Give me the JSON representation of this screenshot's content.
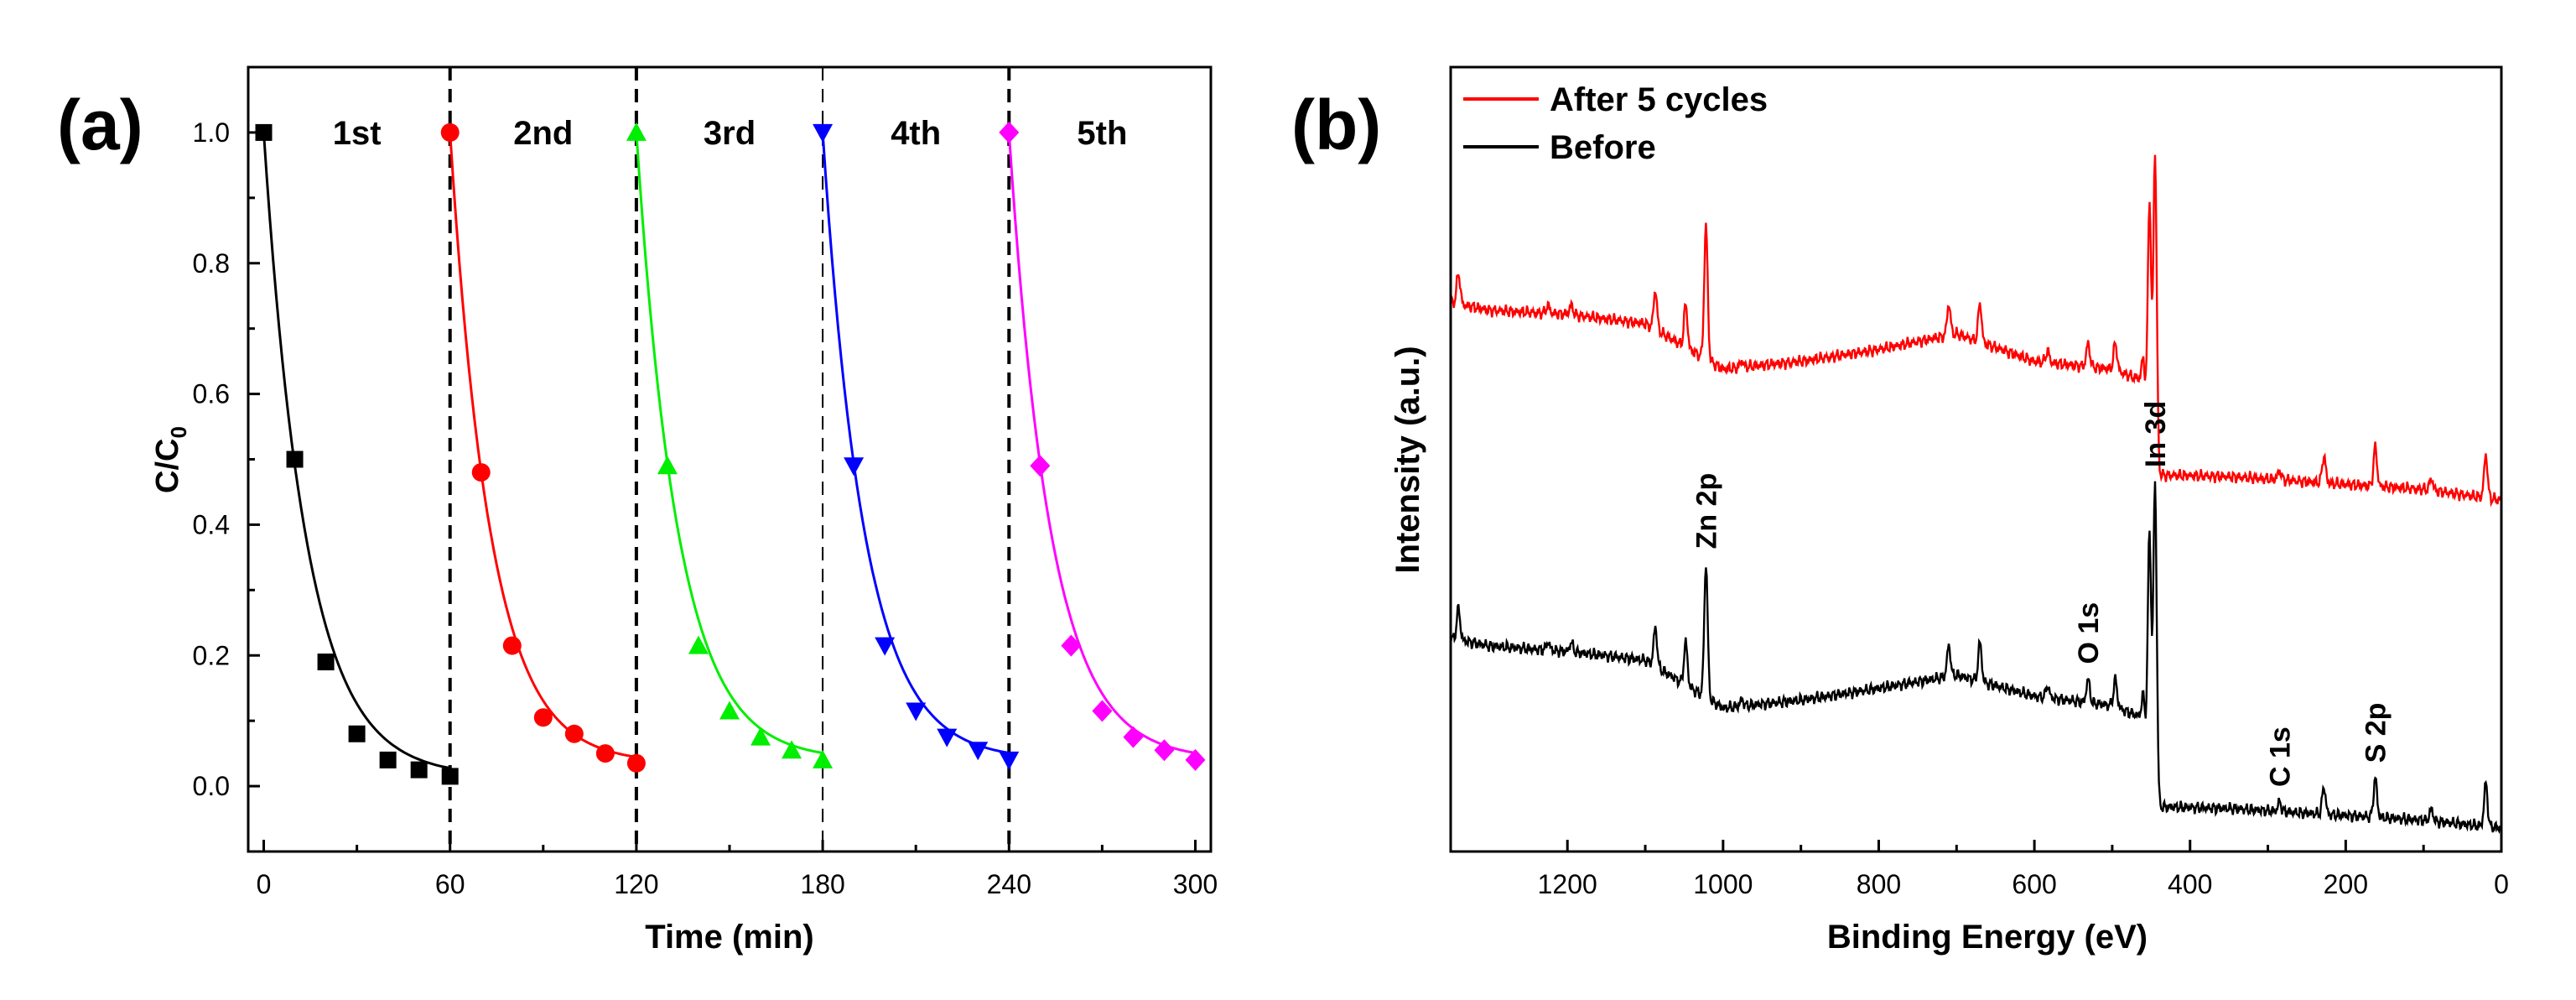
{
  "panel_a_label": "(a)",
  "panel_b_label": "(b)",
  "chart_data": [
    {
      "type": "line",
      "panel": "(a)",
      "xlabel": "Time (min)",
      "ylabel_main": "C/C",
      "ylabel_sub": "0",
      "xlim": [
        -5,
        305
      ],
      "ylim": [
        -0.1,
        1.1
      ],
      "xticks": [
        0,
        60,
        120,
        180,
        240,
        300
      ],
      "yticks": [
        0.0,
        0.2,
        0.4,
        0.6,
        0.8,
        1.0
      ],
      "ytick_labels": [
        "0.0",
        "0.2",
        "0.4",
        "0.6",
        "0.8",
        "1.0"
      ],
      "cycle_dividers": [
        60,
        120,
        180,
        240
      ],
      "cycle_labels": [
        {
          "text": "1st",
          "x": 30
        },
        {
          "text": "2nd",
          "x": 90
        },
        {
          "text": "3rd",
          "x": 150
        },
        {
          "text": "4th",
          "x": 210
        },
        {
          "text": "5th",
          "x": 270
        }
      ],
      "series": [
        {
          "name": "1st",
          "color": "#000000",
          "marker": "square",
          "x": [
            0,
            10,
            20,
            30,
            40,
            50,
            60
          ],
          "y": [
            1.0,
            0.5,
            0.19,
            0.08,
            0.04,
            0.025,
            0.015
          ]
        },
        {
          "name": "2nd",
          "color": "#ff0000",
          "marker": "circle",
          "x": [
            60,
            70,
            80,
            90,
            100,
            110,
            120
          ],
          "y": [
            1.0,
            0.48,
            0.215,
            0.105,
            0.08,
            0.05,
            0.035
          ]
        },
        {
          "name": "3rd",
          "color": "#00ee00",
          "marker": "triangle-up",
          "x": [
            120,
            130,
            140,
            150,
            160,
            170,
            180
          ],
          "y": [
            1.0,
            0.49,
            0.215,
            0.115,
            0.075,
            0.055,
            0.04
          ]
        },
        {
          "name": "4th",
          "color": "#0000ff",
          "marker": "triangle-down",
          "x": [
            180,
            190,
            200,
            210,
            220,
            230,
            240
          ],
          "y": [
            1.0,
            0.49,
            0.215,
            0.115,
            0.075,
            0.055,
            0.04
          ]
        },
        {
          "name": "5th",
          "color": "#ff00ff",
          "marker": "diamond",
          "x": [
            240,
            250,
            260,
            270,
            280,
            290,
            300
          ],
          "y": [
            1.0,
            0.49,
            0.215,
            0.115,
            0.075,
            0.055,
            0.04
          ]
        }
      ]
    },
    {
      "type": "line",
      "panel": "(b)",
      "xlabel": "Binding Energy (eV)",
      "ylabel": "Intensity (a.u.)",
      "xlim": [
        1350,
        0
      ],
      "ylim": [
        0,
        1
      ],
      "xticks": [
        1200,
        1000,
        800,
        600,
        400,
        200,
        0
      ],
      "legend": {
        "position": "top-left",
        "entries": [
          {
            "label": "After 5 cycles",
            "color": "#ff0000"
          },
          {
            "label": "Before",
            "color": "#000000"
          }
        ]
      },
      "annotations": [
        {
          "text": "Zn 2p",
          "x": 1022
        },
        {
          "text": "O 1s",
          "x": 531
        },
        {
          "text": "In 3d",
          "x": 445
        },
        {
          "text": "C 1s",
          "x": 285
        },
        {
          "text": "S 2p",
          "x": 162
        }
      ],
      "series": [
        {
          "name": "After 5 cycles",
          "color": "#ff0000",
          "base": [
            [
              1350,
              0.7
            ],
            [
              1300,
              0.69
            ],
            [
              1200,
              0.685
            ],
            [
              1100,
              0.673
            ],
            [
              1000,
              0.615
            ],
            [
              900,
              0.625
            ],
            [
              800,
              0.64
            ],
            [
              700,
              0.66
            ],
            [
              600,
              0.625
            ],
            [
              500,
              0.615
            ],
            [
              460,
              0.6
            ],
            [
              450,
              0.5
            ],
            [
              440,
              0.48
            ],
            [
              350,
              0.478
            ],
            [
              300,
              0.475
            ],
            [
              200,
              0.468
            ],
            [
              100,
              0.462
            ],
            [
              0,
              0.448
            ]
          ],
          "peaks": [
            [
              1340,
              0.04
            ],
            [
              1225,
              0.01
            ],
            [
              1195,
              0.012
            ],
            [
              1087,
              0.05
            ],
            [
              1048,
              0.055
            ],
            [
              1022,
              0.17
            ],
            [
              976,
              0.008
            ],
            [
              710,
              0.04
            ],
            [
              670,
              0.05
            ],
            [
              583,
              0.015
            ],
            [
              531,
              0.03
            ],
            [
              496,
              0.035
            ],
            [
              460,
              0.03
            ],
            [
              452,
              0.31
            ],
            [
              445,
              0.4
            ],
            [
              285,
              0.012
            ],
            [
              228,
              0.035
            ],
            [
              162,
              0.05
            ],
            [
              90,
              0.015
            ],
            [
              20,
              0.055
            ]
          ]
        },
        {
          "name": "Before",
          "color": "#000000",
          "base": [
            [
              1350,
              0.272
            ],
            [
              1300,
              0.262
            ],
            [
              1200,
              0.255
            ],
            [
              1100,
              0.244
            ],
            [
              1000,
              0.183
            ],
            [
              900,
              0.193
            ],
            [
              800,
              0.208
            ],
            [
              700,
              0.225
            ],
            [
              600,
              0.198
            ],
            [
              500,
              0.186
            ],
            [
              460,
              0.17
            ],
            [
              450,
              0.08
            ],
            [
              440,
              0.057
            ],
            [
              350,
              0.055
            ],
            [
              300,
              0.052
            ],
            [
              200,
              0.046
            ],
            [
              100,
              0.04
            ],
            [
              0,
              0.03
            ]
          ],
          "peaks": [
            [
              1340,
              0.04
            ],
            [
              1225,
              0.01
            ],
            [
              1195,
              0.012
            ],
            [
              1087,
              0.05
            ],
            [
              1048,
              0.055
            ],
            [
              1022,
              0.17
            ],
            [
              976,
              0.008
            ],
            [
              710,
              0.04
            ],
            [
              670,
              0.05
            ],
            [
              583,
              0.015
            ],
            [
              531,
              0.03
            ],
            [
              496,
              0.035
            ],
            [
              460,
              0.03
            ],
            [
              452,
              0.31
            ],
            [
              445,
              0.4
            ],
            [
              285,
              0.012
            ],
            [
              228,
              0.035
            ],
            [
              162,
              0.05
            ],
            [
              90,
              0.015
            ],
            [
              20,
              0.055
            ]
          ]
        }
      ]
    }
  ]
}
